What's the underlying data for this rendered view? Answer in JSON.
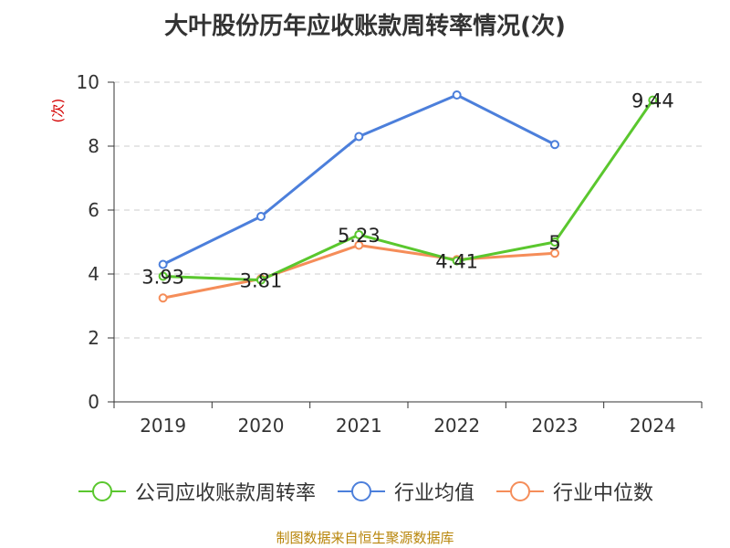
{
  "chart_data": {
    "type": "line",
    "title": "大叶股份历年应收账款周转率情况(次)",
    "ylabel": "(次)",
    "xlabel": "",
    "categories": [
      "2019",
      "2020",
      "2021",
      "2022",
      "2023",
      "2024"
    ],
    "ylim": [
      0,
      10
    ],
    "yticks": [
      0,
      2,
      4,
      6,
      8,
      10
    ],
    "grid": true,
    "legend_position": "bottom",
    "series": [
      {
        "name": "公司应收账款周转率",
        "color": "#5ac72e",
        "values": [
          3.93,
          3.81,
          5.23,
          4.41,
          5,
          9.44
        ],
        "data_labels": [
          "3.93",
          "3.81",
          "5.23",
          "4.41",
          "5",
          "9.44"
        ]
      },
      {
        "name": "行业均值",
        "color": "#4c7fdb",
        "values": [
          4.3,
          5.8,
          8.3,
          9.6,
          8.05,
          null
        ]
      },
      {
        "name": "行业中位数",
        "color": "#f58d59",
        "values": [
          3.25,
          3.85,
          4.9,
          4.45,
          4.65,
          null
        ]
      }
    ]
  },
  "footer": {
    "source": "制图数据来自恒生聚源数据库"
  }
}
